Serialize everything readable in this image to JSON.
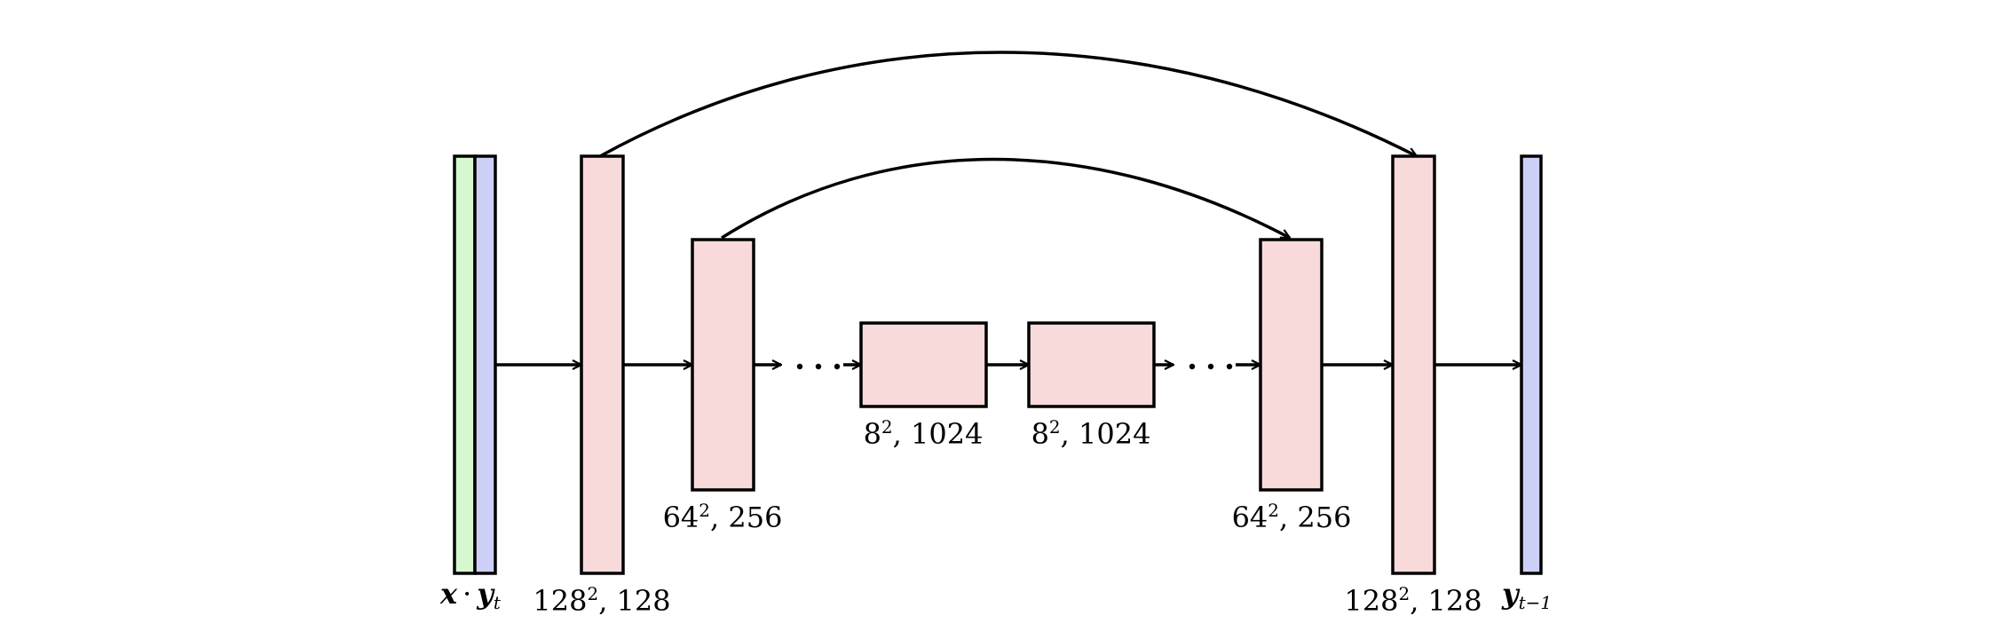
{
  "diagram": {
    "type": "unet-architecture",
    "input": {
      "label_x": "x",
      "label_dot": "·",
      "label_y": "y",
      "label_y_sub": "t"
    },
    "output": {
      "label_y": "y",
      "label_y_sub": "t−1"
    },
    "blocks": [
      {
        "id": "enc1",
        "base": "128",
        "exp": "2",
        "rest": ", 128"
      },
      {
        "id": "enc2",
        "base": "64",
        "exp": "2",
        "rest": ", 256"
      },
      {
        "id": "mid1",
        "base": "8",
        "exp": "2",
        "rest": ", 1024"
      },
      {
        "id": "mid2",
        "base": "8",
        "exp": "2",
        "rest": ", 1024"
      },
      {
        "id": "dec2",
        "base": "64",
        "exp": "2",
        "rest": ", 256"
      },
      {
        "id": "dec1",
        "base": "128",
        "exp": "2",
        "rest": ", 128"
      }
    ],
    "colors": {
      "block_fill": "#f9dada",
      "input_x_fill": "#d5f8cf",
      "input_y_fill": "#cdd0f6",
      "output_fill": "#cdd0f6",
      "stroke": "#000000"
    }
  }
}
